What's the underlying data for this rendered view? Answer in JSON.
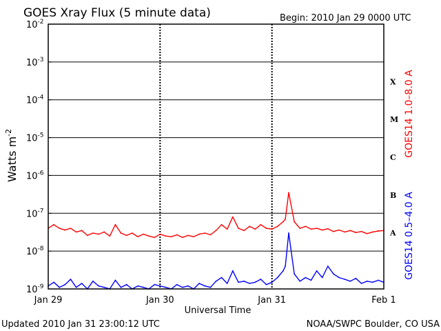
{
  "chart_data": {
    "type": "line",
    "title": "GOES Xray Flux (5 minute data)",
    "begin_label": "Begin:  2010 Jan 29 0000 UTC",
    "ylabel_base": "Watts m",
    "ylabel_exp": "-2",
    "xlabel": "Universal Time",
    "footer_left": "Updated 2010 Jan 31 23:00:12 UTC",
    "footer_right": "NOAA/SWPC Boulder, CO USA",
    "y_scale": "log",
    "ylim": [
      1e-09,
      0.01
    ],
    "xlim": [
      0,
      3
    ],
    "x_unit": "days since 2010 Jan 29 0000 UTC",
    "y_ticks": [
      {
        "value": 0.01,
        "base": "10",
        "exp": "-2"
      },
      {
        "value": 0.001,
        "base": "10",
        "exp": "-3"
      },
      {
        "value": 0.0001,
        "base": "10",
        "exp": "-4"
      },
      {
        "value": 1e-05,
        "base": "10",
        "exp": "-5"
      },
      {
        "value": 1e-06,
        "base": "10",
        "exp": "-6"
      },
      {
        "value": 1e-07,
        "base": "10",
        "exp": "-7"
      },
      {
        "value": 1e-08,
        "base": "10",
        "exp": "-8"
      },
      {
        "value": 1e-09,
        "base": "10",
        "exp": "-9"
      }
    ],
    "x_ticks": [
      {
        "value": 0,
        "label": "Jan 29"
      },
      {
        "value": 1,
        "label": "Jan 30"
      },
      {
        "value": 2,
        "label": "Jan 31"
      },
      {
        "value": 3,
        "label": "Feb 1"
      }
    ],
    "flare_classes": [
      {
        "label": "X",
        "value": 0.00031623
      },
      {
        "label": "M",
        "value": 3.1623e-05
      },
      {
        "label": "C",
        "value": 3.1623e-06
      },
      {
        "label": "B",
        "value": 3.1623e-07
      },
      {
        "label": "A",
        "value": 3.1623e-08
      }
    ],
    "series": [
      {
        "name": "GOES14 1.0–8.0 A",
        "color": "#ff0000",
        "x": [
          0.0,
          0.05,
          0.1,
          0.15,
          0.2,
          0.25,
          0.3,
          0.35,
          0.4,
          0.45,
          0.5,
          0.55,
          0.6,
          0.65,
          0.7,
          0.75,
          0.8,
          0.85,
          0.9,
          0.95,
          1.0,
          1.05,
          1.1,
          1.15,
          1.2,
          1.25,
          1.3,
          1.35,
          1.4,
          1.45,
          1.5,
          1.55,
          1.6,
          1.65,
          1.7,
          1.75,
          1.8,
          1.85,
          1.9,
          1.95,
          2.0,
          2.05,
          2.1,
          2.12,
          2.15,
          2.2,
          2.25,
          2.3,
          2.35,
          2.4,
          2.45,
          2.5,
          2.55,
          2.6,
          2.65,
          2.7,
          2.75,
          2.8,
          2.85,
          2.9,
          2.95,
          3.0
        ],
        "y": [
          4e-08,
          5e-08,
          4e-08,
          3.6e-08,
          4e-08,
          3.2e-08,
          3.5e-08,
          2.6e-08,
          3e-08,
          2.8e-08,
          3.2e-08,
          2.5e-08,
          5e-08,
          3e-08,
          2.6e-08,
          3e-08,
          2.4e-08,
          2.8e-08,
          2.5e-08,
          2.3e-08,
          2.8e-08,
          2.5e-08,
          2.4e-08,
          2.7e-08,
          2.3e-08,
          2.6e-08,
          2.4e-08,
          2.8e-08,
          3e-08,
          2.7e-08,
          3.5e-08,
          5e-08,
          3.8e-08,
          8e-08,
          4e-08,
          3.5e-08,
          4.5e-08,
          3.8e-08,
          5e-08,
          4e-08,
          3.8e-08,
          4.5e-08,
          6e-08,
          7e-08,
          3.5e-07,
          6e-08,
          4e-08,
          4.5e-08,
          3.8e-08,
          4e-08,
          3.6e-08,
          3.9e-08,
          3.3e-08,
          3.6e-08,
          3.2e-08,
          3.5e-08,
          3.1e-08,
          3.3e-08,
          2.9e-08,
          3.2e-08,
          3.4e-08,
          3.5e-08
        ]
      },
      {
        "name": "GOES14 0.5–4.0 A",
        "color": "#0000ff",
        "x": [
          0.0,
          0.05,
          0.1,
          0.15,
          0.2,
          0.25,
          0.3,
          0.35,
          0.4,
          0.45,
          0.5,
          0.55,
          0.6,
          0.65,
          0.7,
          0.75,
          0.8,
          0.85,
          0.9,
          0.95,
          1.0,
          1.05,
          1.1,
          1.15,
          1.2,
          1.25,
          1.3,
          1.35,
          1.4,
          1.45,
          1.5,
          1.55,
          1.6,
          1.65,
          1.7,
          1.75,
          1.8,
          1.85,
          1.9,
          1.95,
          2.0,
          2.05,
          2.1,
          2.12,
          2.15,
          2.2,
          2.25,
          2.3,
          2.35,
          2.4,
          2.45,
          2.5,
          2.55,
          2.6,
          2.65,
          2.7,
          2.75,
          2.8,
          2.85,
          2.9,
          2.95,
          3.0
        ],
        "y": [
          1.2e-09,
          1.5e-09,
          1.1e-09,
          1.3e-09,
          1.8e-09,
          1.1e-09,
          1.4e-09,
          1e-09,
          1.6e-09,
          1.2e-09,
          1.1e-09,
          1e-09,
          1.7e-09,
          1.1e-09,
          1.3e-09,
          1e-09,
          1.2e-09,
          1.1e-09,
          1e-09,
          1.3e-09,
          1.2e-09,
          1.1e-09,
          1e-09,
          1.3e-09,
          1.1e-09,
          1.2e-09,
          1e-09,
          1.4e-09,
          1.2e-09,
          1.1e-09,
          1.6e-09,
          2e-09,
          1.4e-09,
          3e-09,
          1.5e-09,
          1.6e-09,
          1.4e-09,
          1.5e-09,
          1.8e-09,
          1.3e-09,
          1.5e-09,
          2e-09,
          3e-09,
          4e-09,
          3e-08,
          2.5e-09,
          1.6e-09,
          2e-09,
          1.7e-09,
          3e-09,
          2e-09,
          4e-09,
          2.5e-09,
          2e-09,
          1.8e-09,
          1.6e-09,
          1.9e-09,
          1.4e-09,
          1.6e-09,
          1.5e-09,
          1.7e-09,
          1.5e-09
        ]
      }
    ]
  }
}
